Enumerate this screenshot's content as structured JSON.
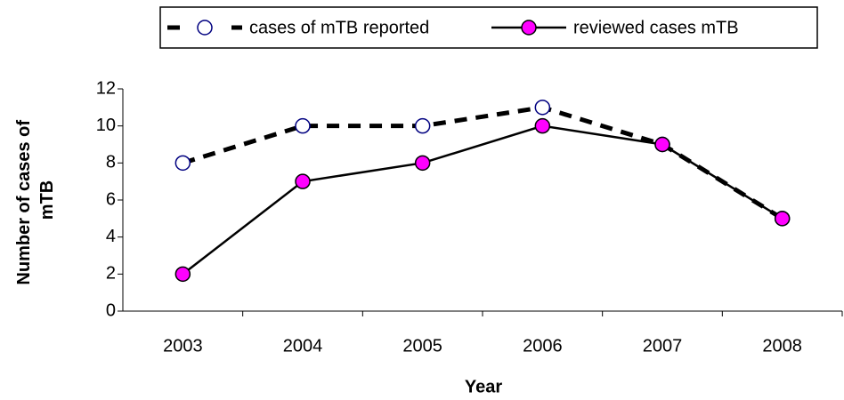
{
  "chart_data": {
    "type": "line",
    "x_label": "Year",
    "y_label": "Number of cases of mTB",
    "categories": [
      "2003",
      "2004",
      "2005",
      "2006",
      "2007",
      "2008"
    ],
    "series": [
      {
        "name": "cases of mTB reported",
        "color": "#000000",
        "line_style": "dashed",
        "marker_color": "#000080",
        "marker_fill": "#ffffff",
        "values": [
          8,
          10,
          10,
          11,
          9,
          5
        ]
      },
      {
        "name": "reviewed cases mTB",
        "color": "#000000",
        "line_style": "solid",
        "marker_color": "#000000",
        "marker_fill": "#ff00ff",
        "values": [
          2,
          7,
          8,
          10,
          9,
          5
        ]
      }
    ],
    "ylim": [
      0,
      12
    ],
    "yticks": [
      0,
      2,
      4,
      6,
      8,
      10,
      12
    ],
    "grid": false,
    "legend": "top"
  }
}
